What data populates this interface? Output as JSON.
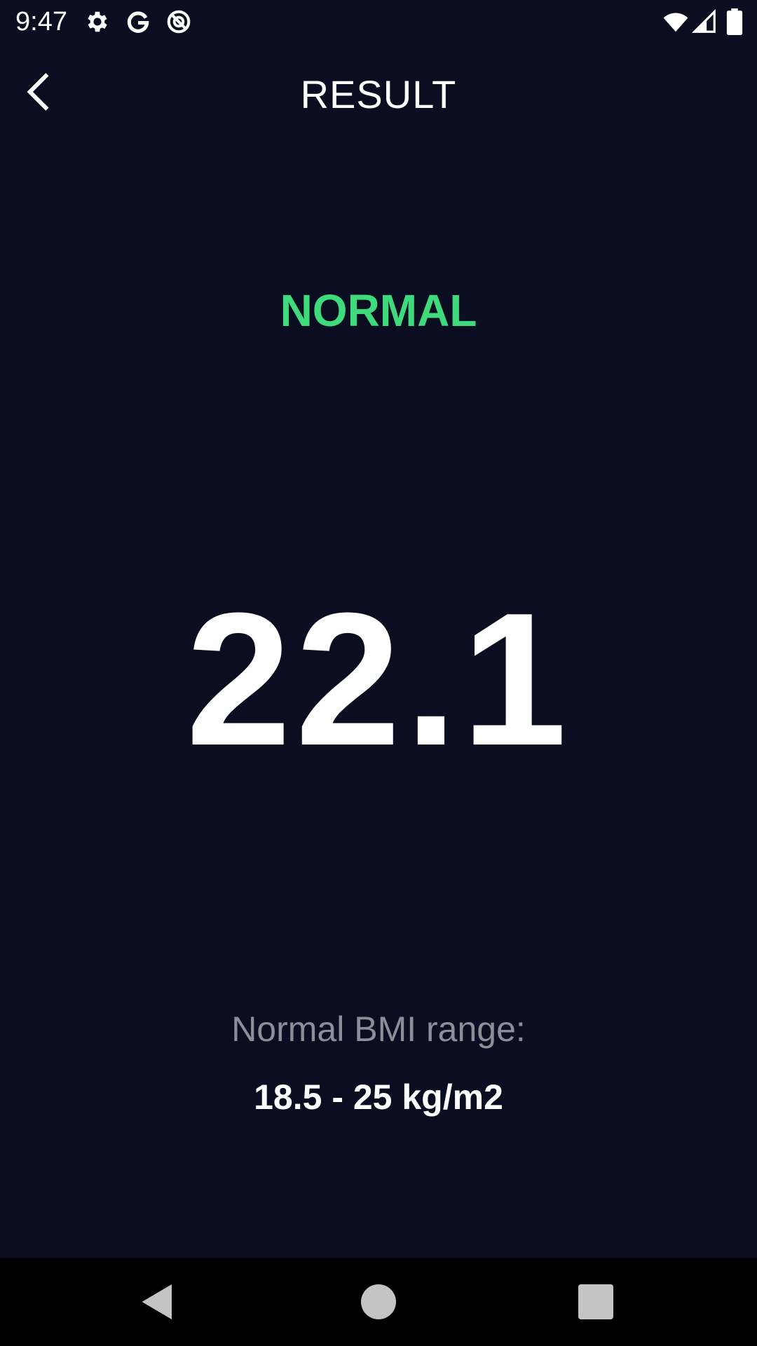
{
  "status_bar": {
    "time": "9:47",
    "icons_left": [
      "gear-icon",
      "google-icon",
      "sync-icon"
    ],
    "icons_right": [
      "wifi-icon",
      "signal-icon",
      "battery-icon"
    ]
  },
  "app_bar": {
    "title": "RESULT",
    "back_icon": "chevron-left-icon"
  },
  "result": {
    "status": "NORMAL",
    "bmi": "22.1",
    "range_label": "Normal BMI range:",
    "range_value": "18.5 - 25 kg/m2"
  },
  "nav_bar": {
    "buttons": [
      "back-triangle-icon",
      "home-circle-icon",
      "recents-square-icon"
    ]
  },
  "colors": {
    "background": "#0b0d21",
    "status_normal": "#3fda7b",
    "secondary_text": "#8d8e98",
    "nav_background": "#000000"
  }
}
